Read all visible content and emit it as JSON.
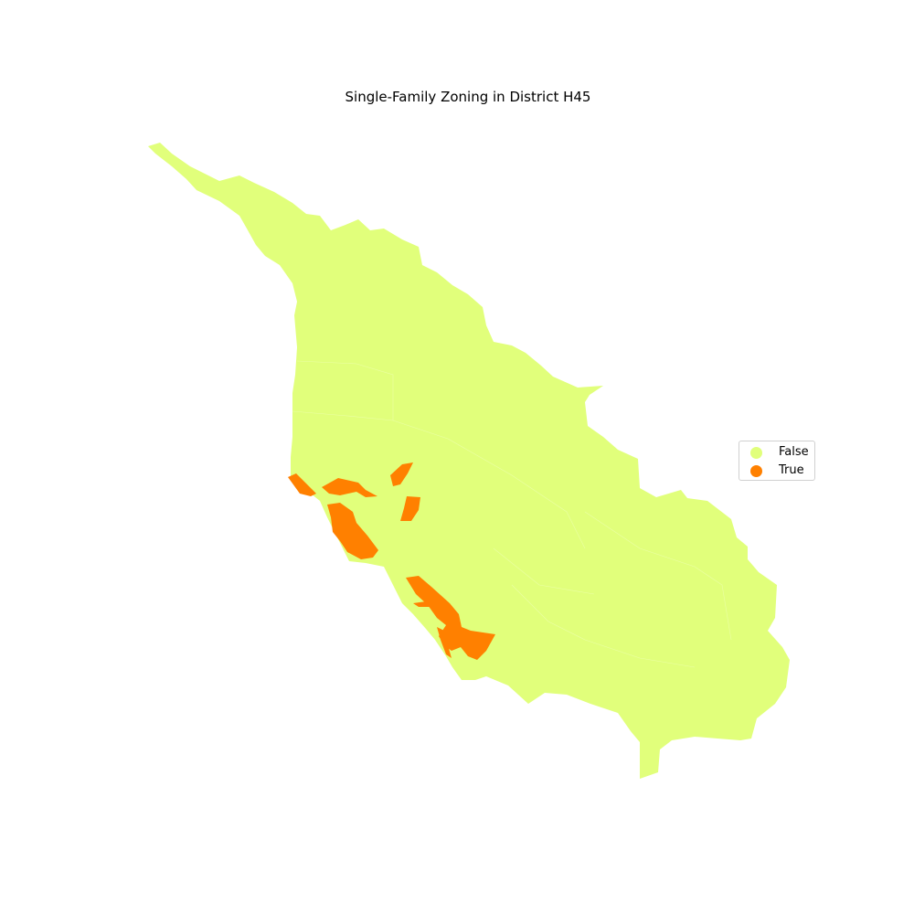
{
  "title": "Single-Family Zoning in District H45",
  "colors": {
    "false": "#e1ff7b",
    "true": "#ff8000"
  },
  "legend": {
    "items": [
      {
        "label": "False",
        "color": "#e1ff7b"
      },
      {
        "label": "True",
        "color": "#ff8000"
      }
    ]
  }
}
